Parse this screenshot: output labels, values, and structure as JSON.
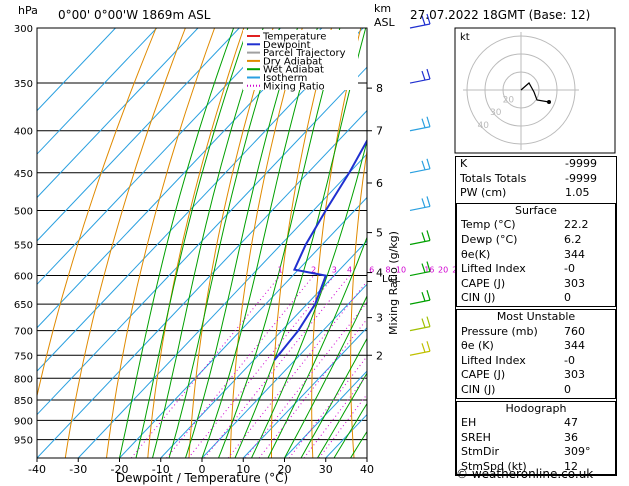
{
  "header": {
    "left_unit": "hPa",
    "location": "0°00' 0°00'W 1869m ASL",
    "right_unit_line1": "km",
    "right_unit_line2": "ASL",
    "datetime": "27.07.2022 18GMT (Base: 12)"
  },
  "legend": [
    {
      "label": "Temperature",
      "color": "#e02020",
      "style": "solid"
    },
    {
      "label": "Dewpoint",
      "color": "#2030d0",
      "style": "solid"
    },
    {
      "label": "Parcel Trajectory",
      "color": "#a0a0a0",
      "style": "solid"
    },
    {
      "label": "Dry Adiabat",
      "color": "#e08a00",
      "style": "solid"
    },
    {
      "label": "Wet Adiabat",
      "color": "#00a000",
      "style": "solid"
    },
    {
      "label": "Isotherm",
      "color": "#2aa0e0",
      "style": "solid"
    },
    {
      "label": "Mixing Ratio",
      "color": "#d000d0",
      "style": "dotted"
    }
  ],
  "chart_data": {
    "type": "line",
    "title": "",
    "xlabel": "Dewpoint / Temperature (°C)",
    "ylabel": "hPa",
    "x_ticks": [
      -40,
      -30,
      -20,
      -10,
      0,
      10,
      20,
      30,
      40
    ],
    "pressure_levels": [
      300,
      350,
      400,
      450,
      500,
      550,
      600,
      650,
      700,
      750,
      800,
      850,
      900,
      950
    ],
    "height_axis_label": "km ASL",
    "height_ticks": [
      {
        "km": "8",
        "p": 355
      },
      {
        "km": "7",
        "p": 400
      },
      {
        "km": "6",
        "p": 463
      },
      {
        "km": "5",
        "p": 532
      },
      {
        "km": "4",
        "p": 595
      },
      {
        "km": "3",
        "p": 675
      },
      {
        "km": "2",
        "p": 750
      }
    ],
    "lcl_label": "LCL",
    "lcl_p": 610,
    "mixing_ratio_axis_label": "Mixing Ratio (g/kg)",
    "mixing_ratio_labels": [
      "1",
      "2",
      "3",
      "4",
      "6",
      "8",
      "10",
      "16",
      "20",
      "25"
    ],
    "series": [
      {
        "name": "Temperature",
        "color": "#e02020",
        "points": [
          [
            -5,
            300
          ],
          [
            -4,
            350
          ],
          [
            -3.5,
            400
          ],
          [
            -3,
            450
          ],
          [
            -2,
            500
          ],
          [
            0,
            550
          ],
          [
            2.5,
            600
          ],
          [
            7,
            650
          ],
          [
            12,
            700
          ],
          [
            19.5,
            760
          ]
        ]
      },
      {
        "name": "Dewpoint",
        "color": "#2030d0",
        "points": [
          [
            -42,
            310
          ],
          [
            -38,
            350
          ],
          [
            -34,
            400
          ],
          [
            -30,
            450
          ],
          [
            -27,
            500
          ],
          [
            -24,
            550
          ],
          [
            -21,
            590
          ],
          [
            -12,
            600
          ],
          [
            -8,
            650
          ],
          [
            -6,
            700
          ],
          [
            -5,
            760
          ]
        ]
      },
      {
        "name": "Parcel Trajectory",
        "color": "#a0a0a0",
        "points": [
          [
            -2,
            300
          ],
          [
            -1.5,
            350
          ],
          [
            -1,
            400
          ],
          [
            -0.5,
            450
          ],
          [
            0,
            500
          ],
          [
            1,
            550
          ],
          [
            3,
            600
          ],
          [
            8,
            650
          ],
          [
            13,
            700
          ],
          [
            19.5,
            760
          ]
        ]
      }
    ]
  },
  "hodograph": {
    "unit_label": "kt",
    "ring_labels": [
      "40",
      "30",
      "20"
    ]
  },
  "wind_barbs": [
    {
      "p": 300,
      "color": "#2030d0"
    },
    {
      "p": 350,
      "color": "#2030d0"
    },
    {
      "p": 400,
      "color": "#2aa0e0"
    },
    {
      "p": 450,
      "color": "#2aa0e0"
    },
    {
      "p": 500,
      "color": "#2aa0e0"
    },
    {
      "p": 550,
      "color": "#00a000"
    },
    {
      "p": 600,
      "color": "#00a000"
    },
    {
      "p": 650,
      "color": "#00a000"
    },
    {
      "p": 700,
      "color": "#a0c000"
    },
    {
      "p": 750,
      "color": "#c0c000"
    }
  ],
  "indices": [
    {
      "label": "K",
      "value": "-9999"
    },
    {
      "label": "Totals Totals",
      "value": "-9999"
    },
    {
      "label": "PW (cm)",
      "value": "1.05"
    }
  ],
  "surface": {
    "title": "Surface",
    "rows": [
      {
        "label": "Temp (°C)",
        "value": "22.2"
      },
      {
        "label": "Dewp (°C)",
        "value": "6.2"
      },
      {
        "label": "θe(K)",
        "value": "344"
      },
      {
        "label": "Lifted Index",
        "value": "-0"
      },
      {
        "label": "CAPE (J)",
        "value": "303"
      },
      {
        "label": "CIN (J)",
        "value": "0"
      }
    ]
  },
  "most_unstable": {
    "title": "Most Unstable",
    "rows": [
      {
        "label": "Pressure (mb)",
        "value": "760"
      },
      {
        "label": "θe (K)",
        "value": "344"
      },
      {
        "label": "Lifted Index",
        "value": "-0"
      },
      {
        "label": "CAPE (J)",
        "value": "303"
      },
      {
        "label": "CIN (J)",
        "value": "0"
      }
    ]
  },
  "hodograph_table": {
    "title": "Hodograph",
    "rows": [
      {
        "label": "EH",
        "value": "47"
      },
      {
        "label": "SREH",
        "value": "36"
      },
      {
        "label": "StmDir",
        "value": "309°"
      },
      {
        "label": "StmSpd (kt)",
        "value": "12"
      }
    ]
  },
  "footer": {
    "copyright": "© weatheronline.co.uk"
  }
}
